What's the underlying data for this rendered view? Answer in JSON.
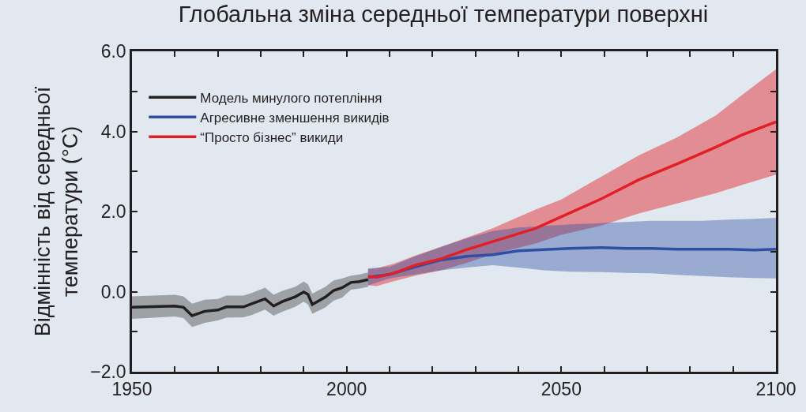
{
  "chart_data": {
    "type": "line",
    "title": "Глобальна зміна середньої температури поверхні",
    "ylabel": "Відмінність від середньої\nтемператури (°C)",
    "xlim": [
      1950,
      2100
    ],
    "xticks": [
      1950,
      {
        "value": 1960,
        "label": null
      },
      {
        "value": 1970,
        "label": null
      },
      {
        "value": 1980,
        "label": null
      },
      {
        "value": 1990,
        "label": null
      },
      2000,
      {
        "value": 2010,
        "label": null
      },
      {
        "value": 2020,
        "label": null
      },
      {
        "value": 2030,
        "label": null
      },
      {
        "value": 2040,
        "label": null
      },
      2050,
      {
        "value": 2060,
        "label": null
      },
      {
        "value": 2070,
        "label": null
      },
      {
        "value": 2080,
        "label": null
      },
      {
        "value": 2090,
        "label": null
      },
      2100
    ],
    "ylim": [
      -2,
      6
    ],
    "yticks": [
      {
        "value": -2,
        "label": "−2.0"
      },
      {
        "value": -1,
        "label": null
      },
      {
        "value": 0,
        "label": "0.0"
      },
      {
        "value": 1,
        "label": null
      },
      {
        "value": 2,
        "label": "2.0"
      },
      {
        "value": 3,
        "label": null
      },
      {
        "value": 4,
        "label": "4.0"
      },
      {
        "value": 5,
        "label": null
      },
      {
        "value": 6,
        "label": "6.0"
      }
    ],
    "grid": false,
    "legend": "top left",
    "marker": "none",
    "line_style": "solid",
    "series": [
      {
        "name": "Модель минулого потепління",
        "color": "#231f20",
        "x": [
          1950,
          1960,
          1962,
          1964,
          1967,
          1970,
          1972,
          1976,
          1978,
          1981,
          1983,
          1985,
          1988,
          1990,
          1991,
          1992,
          1995,
          1997,
          1999,
          2001,
          2003,
          2005
        ],
        "values": [
          -0.39,
          -0.36,
          -0.39,
          -0.6,
          -0.49,
          -0.46,
          -0.38,
          -0.38,
          -0.3,
          -0.18,
          -0.36,
          -0.25,
          -0.13,
          -0.01,
          -0.07,
          -0.32,
          -0.14,
          0.03,
          0.1,
          0.23,
          0.25,
          0.3
        ],
        "lower": [
          -0.68,
          -0.62,
          -0.66,
          -0.88,
          -0.78,
          -0.72,
          -0.65,
          -0.64,
          -0.58,
          -0.45,
          -0.6,
          -0.5,
          -0.38,
          -0.25,
          -0.32,
          -0.55,
          -0.4,
          -0.22,
          -0.15,
          0.05,
          0.08,
          0.12
        ],
        "upper": [
          -0.12,
          -0.08,
          -0.12,
          -0.3,
          -0.2,
          -0.18,
          -0.1,
          -0.1,
          -0.03,
          0.1,
          -0.08,
          0.02,
          0.12,
          0.25,
          0.18,
          -0.05,
          0.12,
          0.28,
          0.33,
          0.4,
          0.43,
          0.48
        ]
      },
      {
        "name": "Агресивне зменшення викидів",
        "color": "#2e4fa3",
        "x": [
          2005,
          2010,
          2016,
          2022,
          2028,
          2034,
          2040,
          2046,
          2052,
          2059,
          2065,
          2071,
          2077,
          2083,
          2089,
          2095,
          2100
        ],
        "values": [
          0.36,
          0.43,
          0.62,
          0.79,
          0.88,
          0.92,
          1.02,
          1.05,
          1.08,
          1.1,
          1.08,
          1.08,
          1.06,
          1.06,
          1.06,
          1.04,
          1.06
        ],
        "lower": [
          0.16,
          0.33,
          0.43,
          0.53,
          0.6,
          0.66,
          0.6,
          0.53,
          0.5,
          0.49,
          0.47,
          0.46,
          0.42,
          0.39,
          0.36,
          0.34,
          0.33
        ],
        "upper": [
          0.58,
          0.62,
          0.88,
          1.12,
          1.33,
          1.51,
          1.6,
          1.64,
          1.68,
          1.71,
          1.74,
          1.77,
          1.77,
          1.77,
          1.8,
          1.82,
          1.84
        ]
      },
      {
        "name": "“Просто бізнес” викиди",
        "color": "#e31e24",
        "x": [
          2005,
          2007,
          2011,
          2016,
          2022,
          2028,
          2034,
          2044,
          2050,
          2059,
          2068,
          2077,
          2086,
          2092,
          2100
        ],
        "values": [
          0.38,
          0.36,
          0.46,
          0.66,
          0.82,
          1.05,
          1.25,
          1.58,
          1.87,
          2.3,
          2.79,
          3.19,
          3.61,
          3.91,
          4.24
        ],
        "lower": [
          0.16,
          0.14,
          0.26,
          0.4,
          0.53,
          0.72,
          0.93,
          1.2,
          1.42,
          1.64,
          1.95,
          2.2,
          2.46,
          2.66,
          2.92
        ],
        "upper": [
          0.56,
          0.58,
          0.7,
          0.9,
          1.12,
          1.35,
          1.58,
          2.05,
          2.3,
          2.85,
          3.4,
          3.85,
          4.4,
          4.9,
          5.55
        ]
      }
    ]
  }
}
